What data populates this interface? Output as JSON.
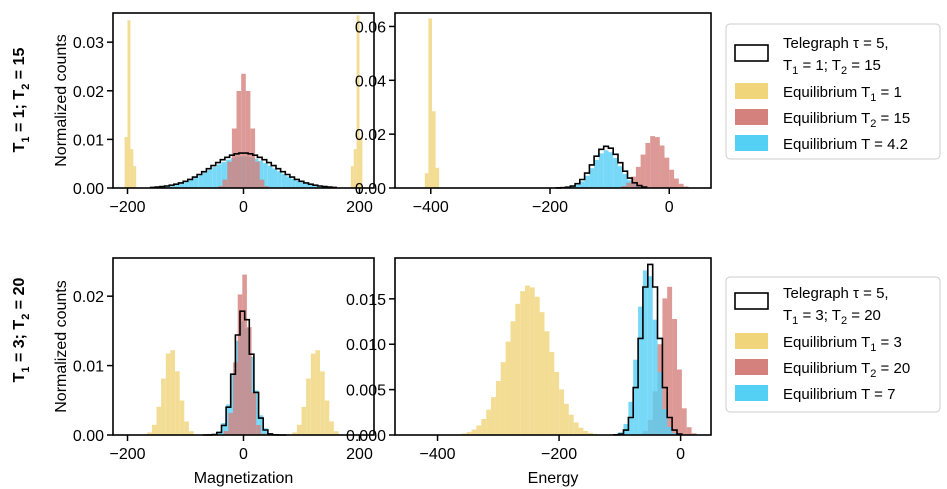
{
  "chart_data": [
    {
      "type": "bar",
      "id": "top-mag",
      "xlabel": "",
      "ylabel": "Normalized counts",
      "xlim": [
        -225,
        225
      ],
      "ylim": [
        0,
        0.036
      ],
      "xticks": [
        -200,
        0,
        200
      ],
      "xtick_labels": [
        "−200",
        "0",
        "200"
      ],
      "yticks": [
        0,
        0.01,
        0.02,
        0.03
      ],
      "ytick_labels": [
        "0.00",
        "0.01",
        "0.02",
        "0.03"
      ],
      "series": [
        {
          "name": "Equilibrium T = 4.2",
          "kind": "gauss",
          "color": "#55d0f5",
          "mu": 0,
          "sigma": 55,
          "peak": 0.0065,
          "lo": -150,
          "hi": 150,
          "step": 8
        },
        {
          "name": "Equilibrium T₂ = 15",
          "kind": "gauss",
          "color": "#d4807c",
          "mu": 0,
          "sigma": 14,
          "peak": 0.0235,
          "lo": -60,
          "hi": 60,
          "step": 8
        },
        {
          "name": "Equilibrium T₁ = 1",
          "kind": "bars",
          "color": "#f0d57a",
          "bins": [
            [
              -205,
              -200,
              0.0105
            ],
            [
              -200,
              -195,
              0.0345
            ],
            [
              -195,
              -190,
              0.008
            ],
            [
              -190,
              -185,
              0.0045
            ],
            [
              185,
              190,
              0.0045
            ],
            [
              190,
              195,
              0.008
            ],
            [
              195,
              200,
              0.0355
            ],
            [
              200,
              205,
              0.0105
            ]
          ]
        },
        {
          "name": "Telegraph",
          "kind": "step-gauss",
          "mu": 0,
          "sigma": 55,
          "peak": 0.0072,
          "lo": -160,
          "hi": 160,
          "step": 8
        }
      ]
    },
    {
      "type": "bar",
      "id": "top-energy",
      "xlabel": "",
      "ylabel": "",
      "xlim": [
        -460,
        70
      ],
      "ylim": [
        0,
        0.065
      ],
      "xticks": [
        -400,
        -200,
        0
      ],
      "xtick_labels": [
        "−400",
        "−200",
        "0"
      ],
      "yticks": [
        0,
        0.02,
        0.04,
        0.06
      ],
      "ytick_labels": [
        "0.00",
        "0.02",
        "0.04",
        "0.06"
      ],
      "series": [
        {
          "name": "Equilibrium T = 4.2",
          "kind": "gauss",
          "color": "#55d0f5",
          "mu": -105,
          "sigma": 22,
          "peak": 0.014,
          "lo": -190,
          "hi": -40,
          "step": 8
        },
        {
          "name": "Equilibrium T₂ = 15",
          "kind": "gauss",
          "color": "#d4807c",
          "mu": -25,
          "sigma": 20,
          "peak": 0.0195,
          "lo": -80,
          "hi": 40,
          "step": 8
        },
        {
          "name": "Equilibrium T₁ = 1",
          "kind": "bars",
          "color": "#f0d57a",
          "bins": [
            [
              -410,
              -404,
              0.0055
            ],
            [
              -404,
              -398,
              0.063
            ],
            [
              -398,
              -392,
              0.0285
            ],
            [
              -392,
              -386,
              0.0075
            ]
          ]
        },
        {
          "name": "Telegraph",
          "kind": "step-gauss",
          "mu": -105,
          "sigma": 23,
          "peak": 0.0155,
          "lo": -190,
          "hi": -40,
          "step": 8
        }
      ]
    },
    {
      "type": "bar",
      "id": "bottom-mag",
      "xlabel": "Magnetization",
      "ylabel": "Normalized counts",
      "xlim": [
        -225,
        225
      ],
      "ylim": [
        0,
        0.0255
      ],
      "xticks": [
        -200,
        0,
        200
      ],
      "xtick_labels": [
        "−200",
        "0",
        "200"
      ],
      "yticks": [
        0,
        0.01,
        0.02
      ],
      "ytick_labels": [
        "0.00",
        "0.01",
        "0.02"
      ],
      "series": [
        {
          "name": "Equilibrium T₁ = 3",
          "kind": "gauss2",
          "color": "#f0d57a",
          "mu": 125,
          "sigma": 14,
          "peak": 0.0125,
          "lo": 60,
          "hi": 190,
          "step": 8
        },
        {
          "name": "Equilibrium T = 7",
          "kind": "gauss",
          "color": "#55d0f5",
          "mu": 0,
          "sigma": 16,
          "peak": 0.0165,
          "lo": -70,
          "hi": 70,
          "step": 8
        },
        {
          "name": "Equilibrium T₂ = 20",
          "kind": "gauss",
          "color": "#d4807c",
          "mu": 0,
          "sigma": 11,
          "peak": 0.0235,
          "lo": -50,
          "hi": 50,
          "step": 8
        },
        {
          "name": "Telegraph",
          "kind": "step-gauss",
          "mu": 0,
          "sigma": 15,
          "peak": 0.018,
          "lo": -70,
          "hi": 70,
          "step": 8
        }
      ]
    },
    {
      "type": "bar",
      "id": "bottom-energy",
      "xlabel": "Energy",
      "ylabel": "",
      "xlim": [
        -470,
        50
      ],
      "ylim": [
        0,
        0.0195
      ],
      "xticks": [
        -400,
        -200,
        0
      ],
      "xtick_labels": [
        "−400",
        "−200",
        "0"
      ],
      "yticks": [
        0,
        0.005,
        0.01,
        0.015
      ],
      "ytick_labels": [
        "0.000",
        "0.005",
        "0.010",
        "0.015"
      ],
      "series": [
        {
          "name": "Equilibrium T₁ = 3",
          "kind": "gauss",
          "color": "#f0d57a",
          "mu": -250,
          "sigma": 35,
          "peak": 0.0165,
          "lo": -360,
          "hi": -140,
          "step": 8
        },
        {
          "name": "Equilibrium T₂ = 20",
          "kind": "gauss",
          "color": "#d4807c",
          "mu": -20,
          "sigma": 14,
          "peak": 0.0165,
          "lo": -70,
          "hi": 30,
          "step": 8
        },
        {
          "name": "Equilibrium T = 7",
          "kind": "gauss",
          "color": "#55d0f5",
          "mu": -55,
          "sigma": 15,
          "peak": 0.0185,
          "lo": -110,
          "hi": 0,
          "step": 8
        },
        {
          "name": "Telegraph",
          "kind": "step-gauss",
          "mu": -50,
          "sigma": 15,
          "peak": 0.0188,
          "lo": -110,
          "hi": 0,
          "step": 8
        }
      ]
    }
  ],
  "row_labels": {
    "top": {
      "t1": "T",
      "s1": "1",
      "m1": " = 1; T",
      "s2": "2",
      "m2": " = 15"
    },
    "bottom": {
      "t1": "T",
      "s1": "1",
      "m1": " = 3; T",
      "s2": "2",
      "m2": " = 20"
    }
  },
  "legends": {
    "top": {
      "telegraph_line1": "Telegraph τ = 5,",
      "telegraph_line2_a": "T",
      "telegraph_line2_s1": "1",
      "telegraph_line2_b": " = 1; T",
      "telegraph_line2_s2": "2",
      "telegraph_line2_c": " = 15",
      "eq1_a": "Equilibrium T",
      "eq1_s": "1",
      "eq1_b": " = 1",
      "eq2_a": "Equilibrium T",
      "eq2_s": "2",
      "eq2_b": " = 15",
      "eq3": "Equilibrium T = 4.2",
      "colors": [
        "#f0d57a",
        "#d4807c",
        "#55d0f5"
      ]
    },
    "bottom": {
      "telegraph_line1": "Telegraph τ = 5,",
      "telegraph_line2_a": "T",
      "telegraph_line2_s1": "1",
      "telegraph_line2_b": " = 3; T",
      "telegraph_line2_s2": "2",
      "telegraph_line2_c": " = 20",
      "eq1_a": "Equilibrium T",
      "eq1_s": "1",
      "eq1_b": " = 3",
      "eq2_a": "Equilibrium T",
      "eq2_s": "2",
      "eq2_b": " = 20",
      "eq3": "Equilibrium T = 7",
      "colors": [
        "#f0d57a",
        "#d4807c",
        "#55d0f5"
      ]
    }
  }
}
